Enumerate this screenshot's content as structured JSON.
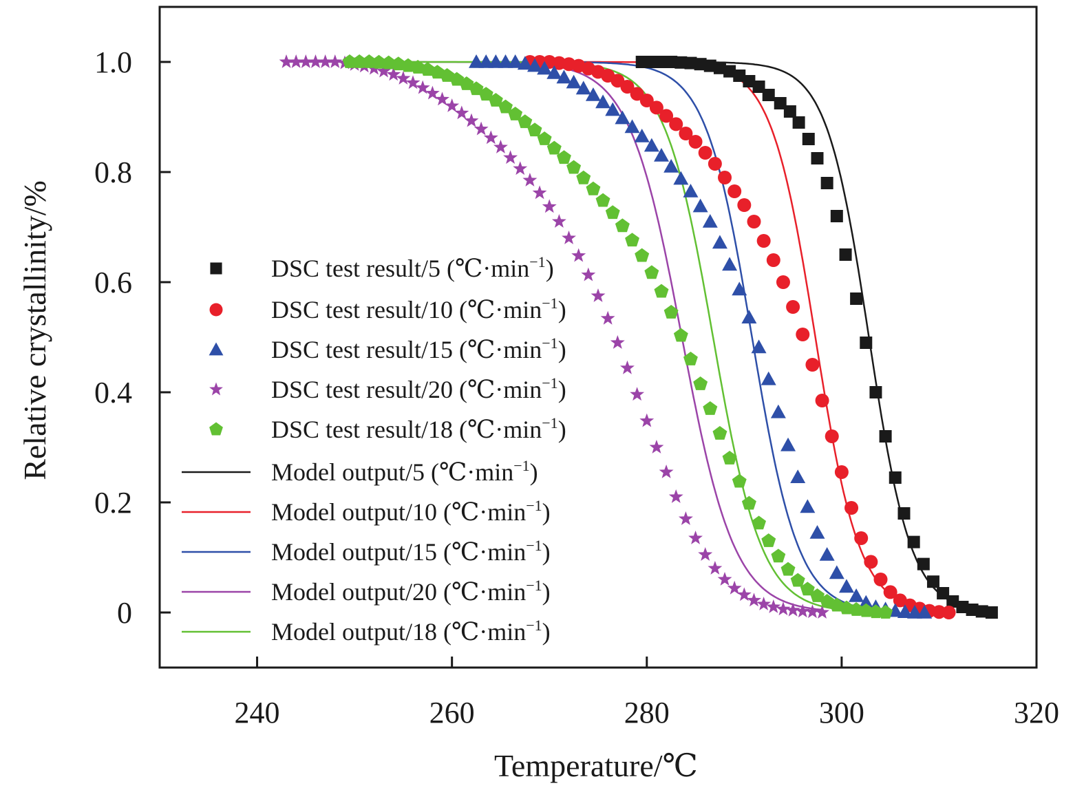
{
  "chart_data": {
    "type": "scatter",
    "title": "",
    "xlabel": "Temperature/℃",
    "ylabel": "Relative crystallinity/%",
    "xlim": [
      230,
      320
    ],
    "ylim": [
      -0.1,
      1.1
    ],
    "x_ticks": [
      240,
      260,
      280,
      300,
      320
    ],
    "x_tick_labels": [
      "240",
      "260",
      "280",
      "300",
      "320"
    ],
    "y_ticks": [
      0,
      0.2,
      0.4,
      0.6,
      0.8,
      1.0
    ],
    "y_tick_labels": [
      "0",
      "0.2",
      "0.4",
      "0.6",
      "0.8",
      "1.0"
    ],
    "grid": false,
    "legend_position": "center-left",
    "series": [
      {
        "name": "DSC test result/5 (℃·min⁻¹)",
        "kind": "markers",
        "marker": "square",
        "color": "#1a1a1a",
        "x": [
          279.5,
          280.5,
          281.5,
          282.5,
          283.5,
          284.5,
          285.5,
          286.5,
          287.5,
          288.5,
          289.5,
          290.5,
          291.5,
          292.5,
          293.7,
          294.7,
          295.6,
          296.6,
          297.5,
          298.5,
          299.5,
          300.4,
          301.5,
          302.5,
          303.5,
          304.5,
          305.5,
          306.4,
          307.4,
          308.4,
          309.4,
          310.4,
          311.4,
          312.4,
          313.4,
          314.4,
          315.4
        ],
        "y": [
          1.0,
          1.0,
          1.0,
          1.0,
          0.999,
          0.998,
          0.996,
          0.993,
          0.989,
          0.983,
          0.975,
          0.965,
          0.955,
          0.94,
          0.925,
          0.91,
          0.89,
          0.86,
          0.825,
          0.78,
          0.72,
          0.65,
          0.57,
          0.49,
          0.4,
          0.32,
          0.245,
          0.18,
          0.128,
          0.088,
          0.056,
          0.035,
          0.02,
          0.01,
          0.005,
          0.002,
          0.0
        ]
      },
      {
        "name": "DSC test result/10 (℃·min⁻¹)",
        "kind": "markers",
        "marker": "circle",
        "color": "#e8202a",
        "x": [
          268.0,
          269.0,
          270.0,
          271.0,
          272.0,
          273.0,
          274.0,
          275.0,
          276.0,
          277.0,
          278.0,
          279.0,
          280.0,
          281.0,
          282.0,
          283.0,
          284.0,
          285.0,
          286.0,
          287.0,
          288.0,
          289.0,
          290.0,
          291.0,
          292.0,
          293.0,
          294.0,
          295.0,
          296.0,
          297.0,
          298.0,
          299.0,
          300.0,
          301.0,
          302.0,
          303.0,
          304.0,
          305.0,
          306.0,
          307.0,
          308.0,
          309.0,
          310.0,
          311.0
        ],
        "y": [
          1.0,
          1.0,
          1.0,
          0.998,
          0.996,
          0.993,
          0.988,
          0.982,
          0.975,
          0.966,
          0.955,
          0.942,
          0.93,
          0.917,
          0.902,
          0.887,
          0.87,
          0.855,
          0.835,
          0.815,
          0.79,
          0.765,
          0.74,
          0.71,
          0.675,
          0.64,
          0.6,
          0.555,
          0.505,
          0.45,
          0.385,
          0.32,
          0.255,
          0.19,
          0.135,
          0.092,
          0.06,
          0.037,
          0.022,
          0.013,
          0.007,
          0.003,
          0.001,
          0.0
        ]
      },
      {
        "name": "DSC test result/15 (℃·min⁻¹)",
        "kind": "markers",
        "marker": "triangle",
        "color": "#2e4fa8",
        "x": [
          262.5,
          263.5,
          264.5,
          265.5,
          266.5,
          267.5,
          268.5,
          269.5,
          270.5,
          271.5,
          272.5,
          273.5,
          274.5,
          275.5,
          276.5,
          277.5,
          278.5,
          279.5,
          280.5,
          281.5,
          282.5,
          283.5,
          284.5,
          285.5,
          286.5,
          287.5,
          288.5,
          289.5,
          290.5,
          291.5,
          292.5,
          293.5,
          294.5,
          295.5,
          296.5,
          297.5,
          298.5,
          299.5,
          300.5,
          301.5,
          302.5,
          303.5,
          304.5,
          305.5,
          306.5,
          307.5,
          308.5
        ],
        "y": [
          1.0,
          1.0,
          1.0,
          1.0,
          1.0,
          0.997,
          0.993,
          0.988,
          0.98,
          0.972,
          0.963,
          0.952,
          0.94,
          0.927,
          0.913,
          0.898,
          0.882,
          0.865,
          0.848,
          0.83,
          0.81,
          0.788,
          0.765,
          0.738,
          0.71,
          0.672,
          0.632,
          0.587,
          0.536,
          0.482,
          0.424,
          0.364,
          0.304,
          0.246,
          0.192,
          0.145,
          0.105,
          0.072,
          0.047,
          0.03,
          0.018,
          0.01,
          0.006,
          0.003,
          0.001,
          0.0,
          0.0
        ]
      },
      {
        "name": "DSC test result/20 (℃·min⁻¹)",
        "kind": "markers",
        "marker": "star",
        "color": "#9b44a8",
        "x": [
          243.0,
          244.0,
          245.0,
          246.0,
          247.0,
          248.0,
          249.0,
          250.0,
          251.0,
          252.0,
          253.0,
          254.0,
          255.0,
          256.0,
          257.0,
          258.0,
          259.0,
          260.0,
          261.0,
          262.0,
          263.0,
          264.0,
          265.0,
          266.0,
          267.0,
          268.0,
          269.0,
          270.0,
          271.0,
          272.0,
          273.0,
          274.0,
          275.0,
          276.0,
          277.0,
          278.0,
          279.0,
          280.0,
          281.0,
          282.0,
          283.0,
          284.0,
          285.0,
          286.0,
          287.0,
          288.0,
          289.0,
          290.0,
          291.0,
          292.0,
          293.0,
          294.0,
          295.0,
          296.0,
          297.0,
          298.0
        ],
        "y": [
          1.0,
          1.0,
          1.0,
          1.0,
          1.0,
          1.0,
          0.998,
          0.995,
          0.992,
          0.988,
          0.983,
          0.977,
          0.97,
          0.962,
          0.953,
          0.943,
          0.932,
          0.92,
          0.907,
          0.893,
          0.878,
          0.862,
          0.845,
          0.826,
          0.806,
          0.785,
          0.762,
          0.737,
          0.71,
          0.68,
          0.648,
          0.613,
          0.575,
          0.534,
          0.49,
          0.444,
          0.396,
          0.348,
          0.3,
          0.255,
          0.21,
          0.17,
          0.135,
          0.105,
          0.08,
          0.06,
          0.044,
          0.032,
          0.022,
          0.015,
          0.01,
          0.006,
          0.004,
          0.002,
          0.001,
          0.0
        ]
      },
      {
        "name": "DSC test result/18 (℃·min⁻¹)",
        "kind": "markers",
        "marker": "pentagon",
        "color": "#62c033",
        "x": [
          249.5,
          250.5,
          251.5,
          252.5,
          253.5,
          254.5,
          255.5,
          256.5,
          257.5,
          258.5,
          259.5,
          260.5,
          261.5,
          262.5,
          263.5,
          264.5,
          265.5,
          266.5,
          267.5,
          268.5,
          269.5,
          270.5,
          271.5,
          272.5,
          273.5,
          274.5,
          275.5,
          276.5,
          277.5,
          278.5,
          279.5,
          280.5,
          281.5,
          282.5,
          283.5,
          284.5,
          285.5,
          286.5,
          287.5,
          288.5,
          289.5,
          290.5,
          291.5,
          292.5,
          293.5,
          294.5,
          295.5,
          296.5,
          297.5,
          298.5,
          299.5,
          300.5,
          301.5,
          302.5,
          303.5,
          304.5
        ],
        "y": [
          1.0,
          1.0,
          1.0,
          0.999,
          0.998,
          0.996,
          0.993,
          0.99,
          0.986,
          0.981,
          0.975,
          0.968,
          0.96,
          0.951,
          0.941,
          0.93,
          0.918,
          0.905,
          0.891,
          0.876,
          0.86,
          0.843,
          0.826,
          0.808,
          0.789,
          0.769,
          0.748,
          0.726,
          0.702,
          0.676,
          0.648,
          0.617,
          0.583,
          0.545,
          0.503,
          0.46,
          0.415,
          0.37,
          0.325,
          0.28,
          0.238,
          0.198,
          0.162,
          0.13,
          0.102,
          0.078,
          0.058,
          0.042,
          0.03,
          0.02,
          0.013,
          0.008,
          0.005,
          0.003,
          0.001,
          0.0
        ]
      },
      {
        "name": "Model output/5 (℃·min⁻¹)",
        "kind": "line",
        "color": "#1a1a1a",
        "model": {
          "type": "logistic",
          "x50": 302.8,
          "k": 0.46
        },
        "x_range": [
          279.5,
          313.5
        ]
      },
      {
        "name": "Model output/10 (℃·min⁻¹)",
        "kind": "line",
        "color": "#e8202a",
        "model": {
          "type": "logistic",
          "x50": 297.3,
          "k": 0.44
        },
        "x_range": [
          268.0,
          307.5
        ]
      },
      {
        "name": "Model output/15 (℃·min⁻¹)",
        "kind": "line",
        "color": "#2e4fa8",
        "model": {
          "type": "logistic",
          "x50": 290.8,
          "k": 0.42
        },
        "x_range": [
          262.5,
          306.0
        ]
      },
      {
        "name": "Model output/20 (℃·min⁻¹)",
        "kind": "line",
        "color": "#9b44a8",
        "model": {
          "type": "logistic",
          "x50": 283.6,
          "k": 0.37
        },
        "x_range": [
          243.0,
          298.0
        ]
      },
      {
        "name": "Model output/18 (℃·min⁻¹)",
        "kind": "line",
        "color": "#62c033",
        "model": {
          "type": "logistic",
          "x50": 286.8,
          "k": 0.4
        },
        "x_range": [
          249.5,
          301.0
        ]
      }
    ],
    "legend": [
      {
        "marker": "square",
        "color": "#1a1a1a",
        "label": "DSC test result/5 (℃·min",
        "sup": "−1",
        "close": ")"
      },
      {
        "marker": "circle",
        "color": "#e8202a",
        "label": "DSC test result/10 (℃·min",
        "sup": "−1",
        "close": ")"
      },
      {
        "marker": "triangle",
        "color": "#2e4fa8",
        "label": "DSC test result/15 (℃·min",
        "sup": "−1",
        "close": ")"
      },
      {
        "marker": "star",
        "color": "#9b44a8",
        "label": "DSC test result/20 (℃·min",
        "sup": "−1",
        "close": ")"
      },
      {
        "marker": "pentagon",
        "color": "#62c033",
        "label": "DSC test result/18 (℃·min",
        "sup": "−1",
        "close": ")"
      },
      {
        "marker": "line",
        "color": "#1a1a1a",
        "label": "Model output/5 (℃·min",
        "sup": "−1",
        "close": ")"
      },
      {
        "marker": "line",
        "color": "#e8202a",
        "label": "Model output/10 (℃·min",
        "sup": "−1",
        "close": ")"
      },
      {
        "marker": "line",
        "color": "#2e4fa8",
        "label": "Model output/15 (℃·min",
        "sup": "−1",
        "close": ")"
      },
      {
        "marker": "line",
        "color": "#9b44a8",
        "label": "Model output/20 (℃·min",
        "sup": "−1",
        "close": ")"
      },
      {
        "marker": "line",
        "color": "#62c033",
        "label": "Model output/18 (℃·min",
        "sup": "−1",
        "close": ")"
      }
    ]
  }
}
